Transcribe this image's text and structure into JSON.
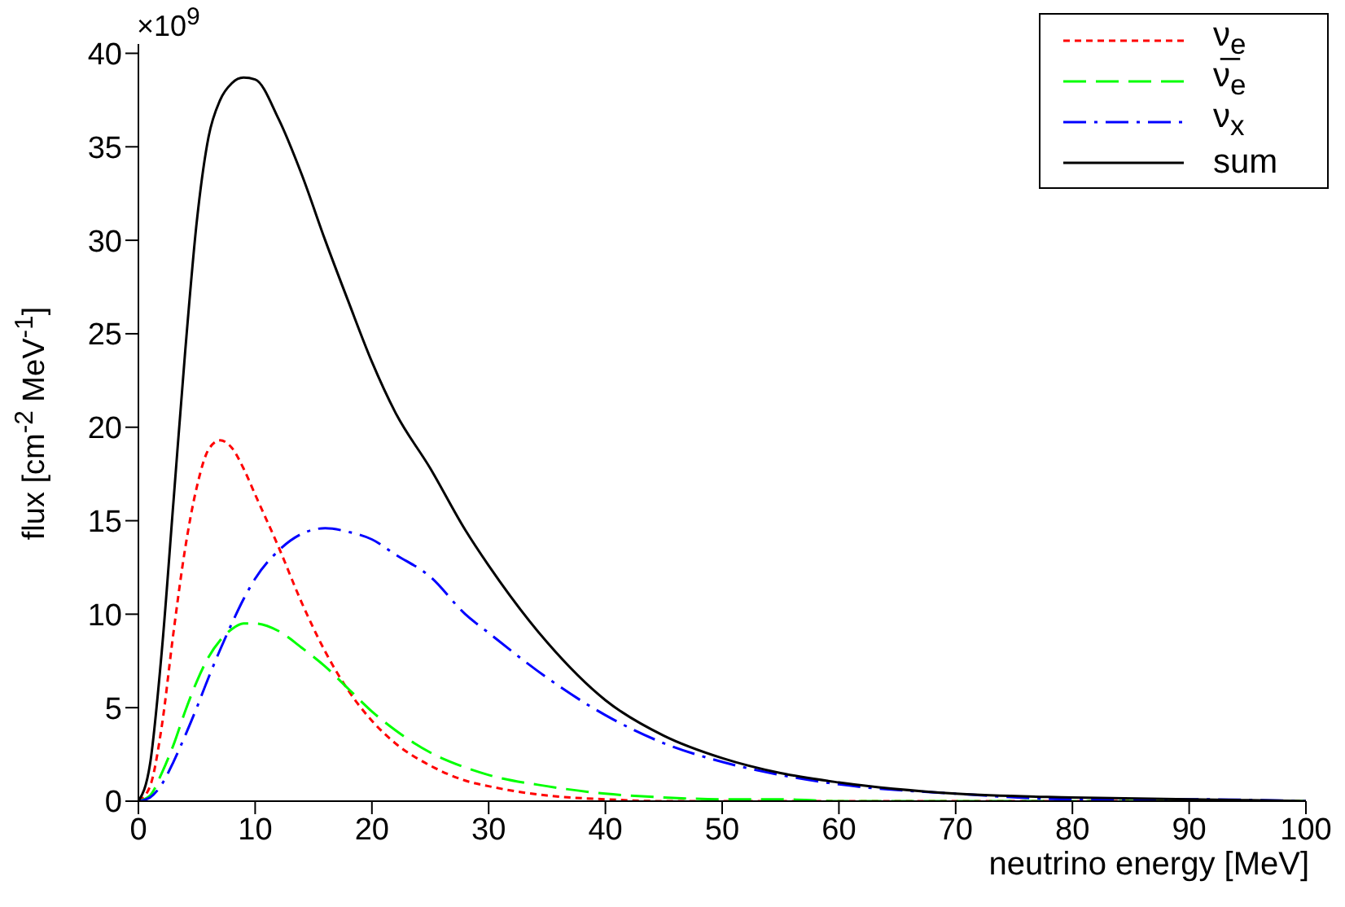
{
  "chart_data": {
    "type": "line",
    "xlabel": "neutrino energy [MeV]",
    "ylabel": "flux [cm$^{-2}$ MeV$^{-1}$]",
    "annotations": [
      "×10$^{9}$"
    ],
    "x": [
      0,
      1,
      2,
      3,
      4,
      5,
      6,
      7,
      8,
      9,
      10,
      12,
      14,
      16,
      18,
      20,
      22,
      25,
      28,
      30,
      35,
      40,
      45,
      50,
      55,
      60,
      70,
      80,
      90,
      100
    ],
    "series": [
      {
        "name": "ν$_{e}$",
        "color": "#ff0000",
        "line_style": "dotted",
        "values": [
          0,
          0.8,
          4,
          9,
          13.5,
          16.8,
          18.8,
          19.3,
          18.9,
          17.8,
          16.4,
          13.6,
          10.6,
          8.0,
          5.9,
          4.3,
          3.1,
          1.9,
          1.1,
          0.8,
          0.3,
          0.1,
          0,
          0,
          0,
          0,
          0,
          0,
          0,
          0
        ]
      },
      {
        "name": "ν̅$_{e}$",
        "color": "#00ff00",
        "line_style": "dashed",
        "values": [
          0,
          0.3,
          1.5,
          3,
          4.8,
          6.4,
          7.7,
          8.6,
          9.2,
          9.5,
          9.5,
          9.1,
          8.2,
          7.2,
          6.0,
          4.8,
          3.8,
          2.6,
          1.8,
          1.4,
          0.8,
          0.4,
          0.2,
          0.1,
          0.1,
          0,
          0,
          0,
          0,
          0
        ]
      },
      {
        "name": "ν$_{x}$",
        "color": "#0000ff",
        "line_style": "dashdot",
        "values": [
          0,
          0.2,
          0.9,
          2.1,
          3.5,
          5,
          6.6,
          8.1,
          9.5,
          10.8,
          11.9,
          13.4,
          14.3,
          14.6,
          14.4,
          14.0,
          13.2,
          12.0,
          10.0,
          9.0,
          6.6,
          4.6,
          3.1,
          2.1,
          1.4,
          0.9,
          0.4,
          0.1,
          0.1,
          0
        ]
      },
      {
        "name": "sum",
        "color": "#000000",
        "line_style": "solid",
        "values": [
          0,
          2,
          8,
          16,
          24,
          31,
          35.5,
          37.5,
          38.4,
          38.7,
          38.6,
          36.5,
          33.5,
          30,
          26.7,
          23.5,
          20.8,
          17.8,
          14.5,
          12.6,
          8.5,
          5.4,
          3.5,
          2.3,
          1.5,
          1.0,
          0.4,
          0.2,
          0.1,
          0
        ]
      }
    ],
    "xlim": [
      0,
      100
    ],
    "xticks": [
      0,
      10,
      20,
      30,
      40,
      50,
      60,
      70,
      80,
      90,
      100
    ],
    "ylim": [
      0,
      40.5
    ],
    "yticks": [
      0,
      5,
      10,
      15,
      20,
      25,
      30,
      35,
      40
    ],
    "grid": false,
    "legend": "top right",
    "marker": "none"
  }
}
